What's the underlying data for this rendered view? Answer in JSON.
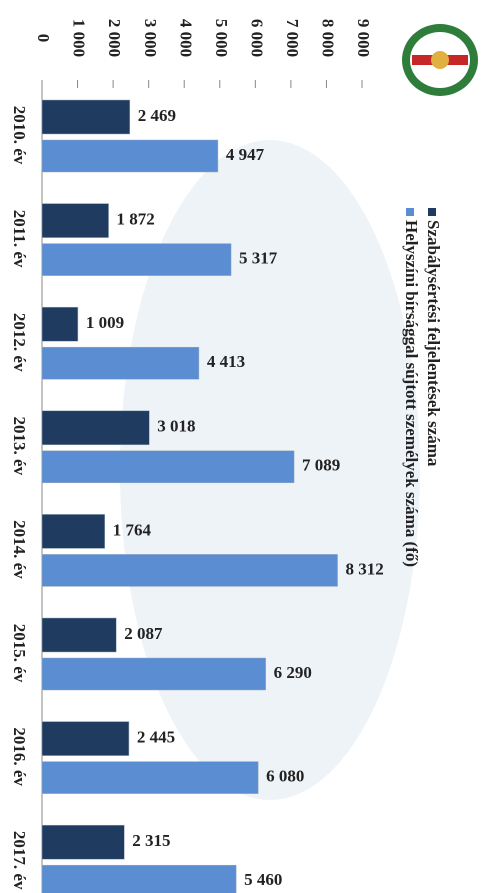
{
  "chart_data": {
    "type": "bar",
    "categories": [
      "2010. év",
      "2011. év",
      "2012. év",
      "2013. év",
      "2014. év",
      "2015. év",
      "2016. év",
      "2017. év"
    ],
    "series": [
      {
        "name": "Szabálysértési feljelentések száma",
        "color": "#1f3b60",
        "values": [
          2469,
          1872,
          1009,
          3018,
          1764,
          2087,
          2445,
          2315
        ],
        "value_labels": [
          "2 469",
          "1 872",
          "1 009",
          "3 018",
          "1 764",
          "2 087",
          "2 445",
          "2 315"
        ]
      },
      {
        "name": "Helyszíni bírsággal sújtott személyek száma (fő)",
        "color": "#5b8dd3",
        "values": [
          4947,
          5317,
          4413,
          7089,
          8312,
          6290,
          6080,
          5460
        ],
        "value_labels": [
          "4 947",
          "5 317",
          "4 413",
          "7 089",
          "8 312",
          "6 290",
          "6 080",
          "5 460"
        ]
      }
    ],
    "xlim": [
      0,
      9000
    ],
    "xticks": [
      0,
      {
        "value": 1000,
        "label": "1 000"
      },
      {
        "value": 2000,
        "label": "2 000"
      },
      {
        "value": 3000,
        "label": "3 000"
      },
      {
        "value": 4000,
        "label": "4 000"
      },
      {
        "value": 5000,
        "label": "5 000"
      },
      {
        "value": 6000,
        "label": "6 000"
      },
      {
        "value": 7000,
        "label": "7 000"
      },
      {
        "value": 8000,
        "label": "8 000"
      },
      {
        "value": 9000,
        "label": "9 000"
      }
    ]
  }
}
